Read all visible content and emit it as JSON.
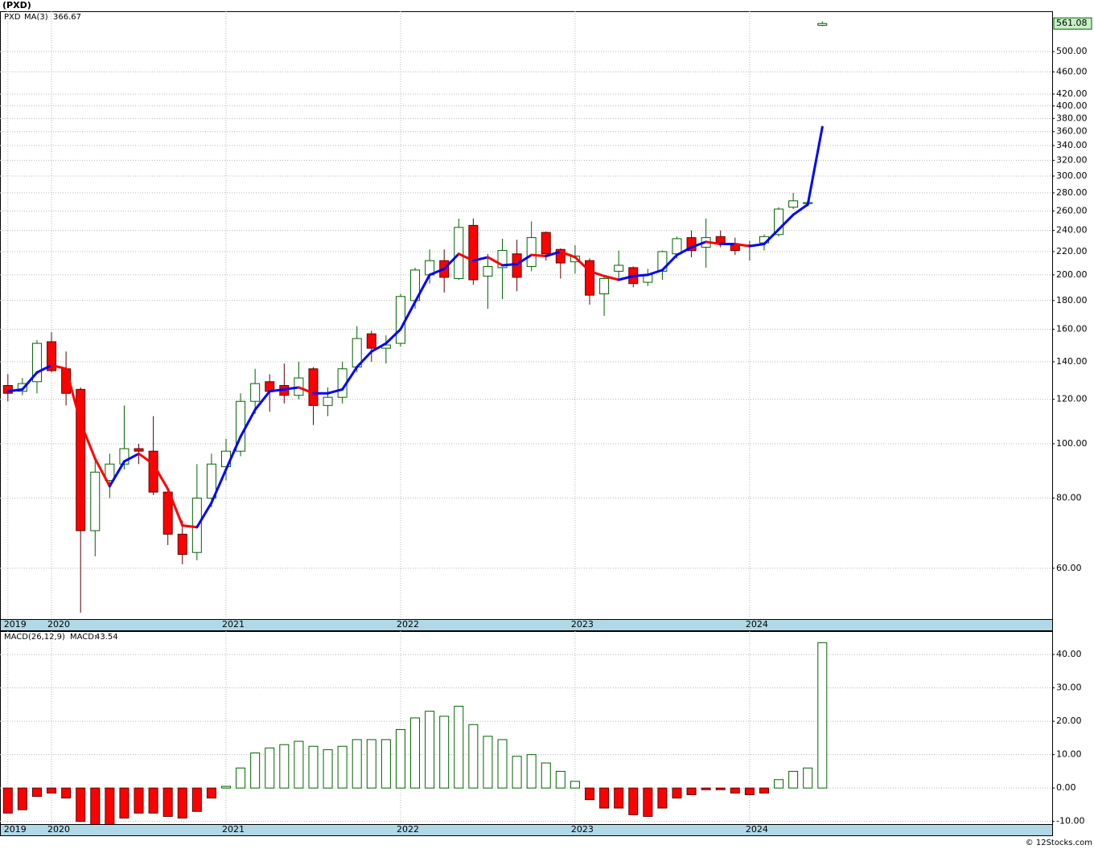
{
  "header": {
    "title": "(PXD)"
  },
  "chart_data": [
    {
      "type": "candlestick",
      "symbol": "PXD",
      "categories": [
        "2019",
        null,
        null,
        "2020",
        null,
        null,
        null,
        null,
        null,
        null,
        null,
        null,
        null,
        null,
        null,
        "2021",
        null,
        null,
        null,
        null,
        null,
        null,
        null,
        null,
        null,
        null,
        null,
        "2022",
        null,
        null,
        null,
        null,
        null,
        null,
        null,
        null,
        null,
        null,
        null,
        "2023",
        null,
        null,
        null,
        null,
        null,
        null,
        null,
        null,
        null,
        null,
        null,
        "2024",
        null,
        null,
        null,
        null,
        null
      ],
      "open": [
        127,
        124,
        129,
        152,
        136,
        125,
        70,
        86,
        92,
        98,
        97,
        82,
        69,
        64,
        80,
        91,
        97,
        119,
        129,
        127,
        122,
        136,
        117,
        121,
        137,
        157,
        148,
        151,
        180,
        200,
        212,
        197,
        245,
        199,
        206,
        218,
        207,
        238,
        222,
        211,
        212,
        185,
        203,
        206,
        194,
        203,
        218,
        233,
        224,
        234,
        227,
        225,
        228,
        236,
        264,
        268,
        557
      ],
      "high": [
        133,
        131,
        153,
        158,
        146,
        126,
        94,
        96,
        117,
        100,
        112,
        83,
        73,
        92,
        96,
        102,
        123,
        136,
        133,
        139,
        140,
        137,
        126,
        140,
        162,
        159,
        156,
        185,
        206,
        222,
        222,
        252,
        252,
        218,
        232,
        231,
        249,
        239,
        223,
        226,
        214,
        200,
        221,
        207,
        205,
        221,
        234,
        240,
        252,
        240,
        233,
        230,
        236,
        264,
        280,
        272,
        566
      ],
      "low": [
        119,
        122,
        123,
        134,
        117,
        50,
        63,
        80,
        90,
        92,
        81,
        66,
        61,
        62,
        77,
        86,
        95,
        113,
        114,
        118,
        120,
        108,
        112,
        118,
        134,
        140,
        139,
        149,
        174,
        193,
        186,
        196,
        192,
        174,
        181,
        187,
        203,
        212,
        197,
        201,
        177,
        169,
        196,
        190,
        191,
        196,
        214,
        215,
        206,
        224,
        217,
        212,
        221,
        234,
        262,
        265,
        555
      ],
      "close": [
        123,
        128,
        151,
        135,
        123,
        70,
        89,
        92,
        98,
        97,
        82,
        69,
        63.5,
        80,
        92,
        97,
        119,
        128,
        124,
        122,
        131,
        117,
        121,
        136,
        154,
        148,
        150,
        183,
        204,
        212,
        198,
        243,
        196,
        207,
        221,
        198,
        233,
        218,
        210,
        216,
        184,
        197,
        208,
        193,
        200,
        220,
        232,
        221,
        233,
        228,
        221,
        226,
        234,
        262,
        271,
        269,
        561.08
      ],
      "up_color": "#006400",
      "down_color": "#ff0000",
      "series": [
        {
          "name": "MA(3)",
          "color": "#0000ff",
          "falling_color": "#ff0000",
          "values": [
            124,
            125,
            134,
            138,
            136,
            109,
            94,
            84,
            93,
            96,
            92,
            83,
            71.5,
            71,
            78.5,
            90,
            103,
            115,
            124,
            125,
            126,
            123,
            123,
            125,
            137,
            146,
            151,
            160,
            179,
            200,
            205,
            218,
            212,
            215,
            208,
            209,
            217,
            216,
            220,
            215,
            203,
            199,
            196,
            199,
            200,
            204,
            217,
            224,
            229,
            227,
            227,
            225,
            227,
            241,
            256,
            267,
            366.67
          ]
        }
      ],
      "ylim": [
        48.7,
        590
      ],
      "log_scale": true,
      "grid": true,
      "yticks": [
        {
          "value": 60,
          "label": "60.00"
        },
        {
          "value": 80,
          "label": "80.00"
        },
        {
          "value": 100,
          "label": "100.00"
        },
        {
          "value": 120,
          "label": "120.00"
        },
        {
          "value": 140,
          "label": "140.00"
        },
        {
          "value": 160,
          "label": "160.00"
        },
        {
          "value": 180,
          "label": "180.00"
        },
        {
          "value": 200,
          "label": "200.00"
        },
        {
          "value": 220,
          "label": "220.00"
        },
        {
          "value": 240,
          "label": "240.00"
        },
        {
          "value": 260,
          "label": "260.00"
        },
        {
          "value": 280,
          "label": "280.00"
        },
        {
          "value": 300,
          "label": "300.00"
        },
        {
          "value": 320,
          "label": "320.00"
        },
        {
          "value": 340,
          "label": "340.00"
        },
        {
          "value": 360,
          "label": "360.00"
        },
        {
          "value": 380,
          "label": "380.00"
        },
        {
          "value": 400,
          "label": "400.00"
        },
        {
          "value": 420,
          "label": "420.00"
        },
        {
          "value": 460,
          "label": "460.00"
        },
        {
          "value": 500,
          "label": "500.00"
        }
      ]
    },
    {
      "type": "bar",
      "title": "MACD(26,12,9)",
      "value_name": "MACD:",
      "categories": [
        "2019",
        null,
        null,
        "2020",
        null,
        null,
        null,
        null,
        null,
        null,
        null,
        null,
        null,
        null,
        null,
        "2021",
        null,
        null,
        null,
        null,
        null,
        null,
        null,
        null,
        null,
        null,
        null,
        "2022",
        null,
        null,
        null,
        null,
        null,
        null,
        null,
        null,
        null,
        null,
        null,
        "2023",
        null,
        null,
        null,
        null,
        null,
        null,
        null,
        null,
        null,
        null,
        null,
        "2024",
        null,
        null,
        null,
        null,
        null
      ],
      "values": [
        -7.5,
        -6.5,
        -2.5,
        -1.5,
        -3,
        -10,
        -11,
        -11,
        -9,
        -7.5,
        -7.5,
        -8.5,
        -9,
        -7,
        -3,
        0.5,
        6,
        10.5,
        12,
        13,
        14,
        12.5,
        11.5,
        12.5,
        14.5,
        14.5,
        14.5,
        17.5,
        21,
        23,
        21.5,
        24.5,
        19,
        15.5,
        14.5,
        9.5,
        10,
        7.5,
        5,
        2,
        -3.5,
        -6,
        -6,
        -8,
        -8.5,
        -6,
        -3,
        -2,
        -0.5,
        -0.5,
        -1.5,
        -2,
        -1.5,
        2.5,
        5,
        6,
        43.54
      ],
      "up_color": "#006400",
      "down_color": "#ff0000",
      "label_color": "#0000ff",
      "ylim": [
        -10.8,
        47
      ],
      "grid": true,
      "yticks": [
        {
          "value": 40,
          "label": "40.00"
        },
        {
          "value": 30,
          "label": "30.00"
        },
        {
          "value": 20,
          "label": "20.00"
        },
        {
          "value": 10,
          "label": "10.00"
        },
        {
          "value": 0,
          "label": "0.00"
        },
        {
          "value": -10,
          "label": "-10.00"
        }
      ]
    }
  ],
  "footer": {
    "credit": "© 12Stocks.com"
  }
}
